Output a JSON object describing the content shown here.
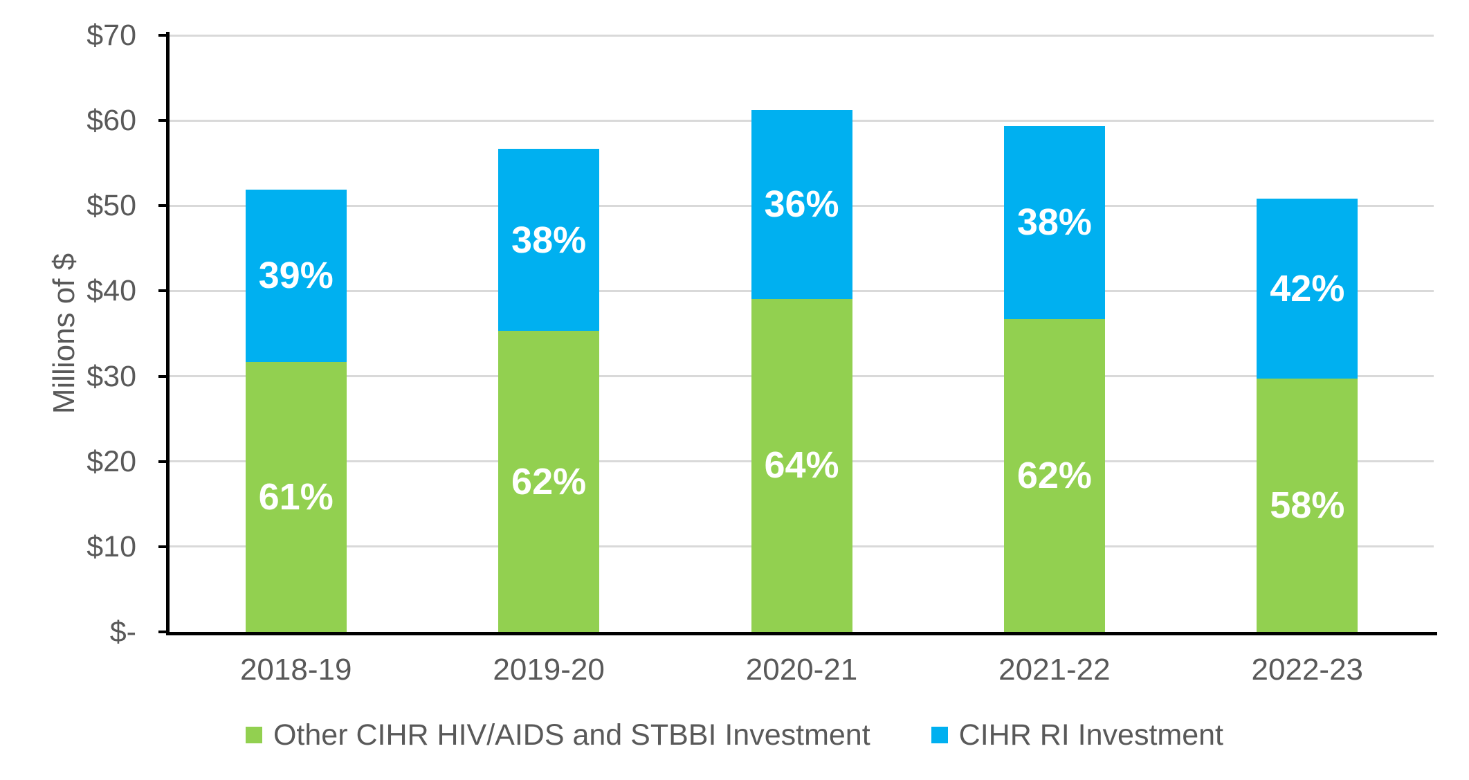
{
  "chart_data": {
    "type": "bar",
    "stacked": true,
    "title": "",
    "categories": [
      "2018-19",
      "2019-20",
      "2020-21",
      "2021-22",
      "2022-23"
    ],
    "series": [
      {
        "name": "Other CIHR HIV/AIDS and STBBI Investment",
        "color": "#92D050",
        "values": [
          31.7,
          35.3,
          39.1,
          36.7,
          29.7
        ],
        "percent_labels": [
          "61%",
          "62%",
          "64%",
          "62%",
          "58%"
        ]
      },
      {
        "name": "CIHR RI Investment",
        "color": "#00B0F0",
        "values": [
          20.2,
          21.4,
          22.1,
          22.7,
          21.1
        ],
        "percent_labels": [
          "39%",
          "38%",
          "36%",
          "38%",
          "42%"
        ]
      }
    ],
    "xlabel": "",
    "ylabel": "Millions of $",
    "ylim": [
      0,
      70
    ],
    "ytick_interval": 10,
    "ytick_labels": [
      "$-",
      "$10",
      "$20",
      "$30",
      "$40",
      "$50",
      "$60",
      "$70"
    ],
    "grid": true,
    "legend_position": "bottom",
    "bar_label_color": "#FFFFFF"
  },
  "styles": {
    "background": "#FFFFFF",
    "axis_text_color": "#595959",
    "axis_line_color": "#000000",
    "gridline_color": "#D9D9D9"
  }
}
